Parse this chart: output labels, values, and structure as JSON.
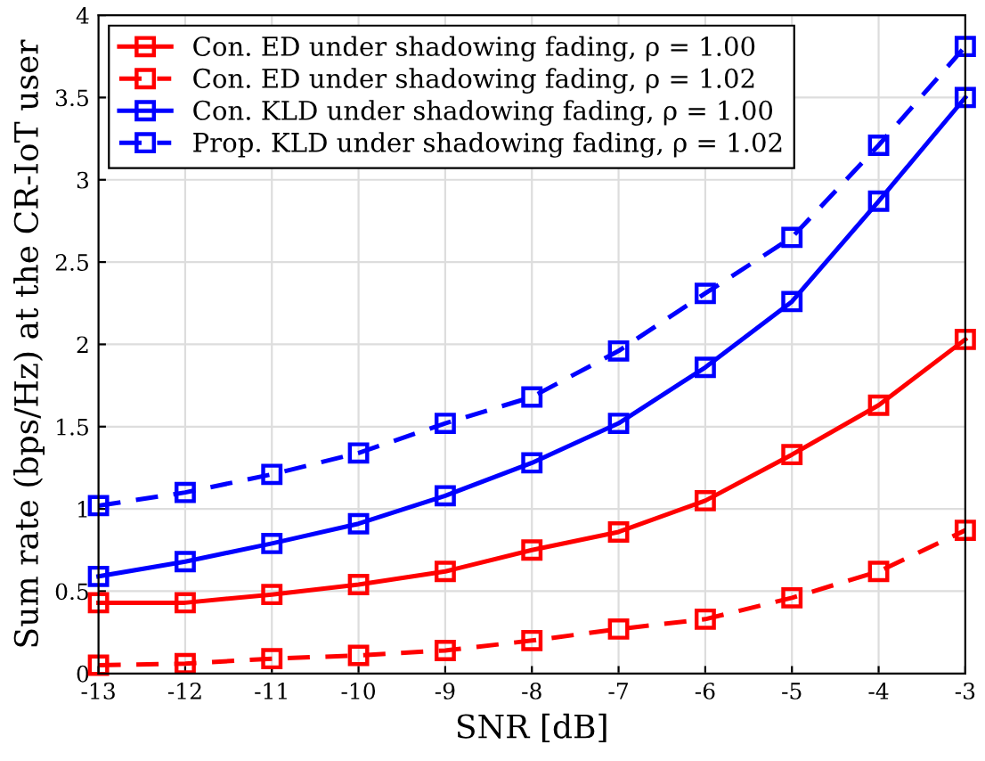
{
  "chart_data": {
    "type": "line",
    "xlabel": "SNR [dB]",
    "ylabel": "Sum rate (bps/Hz) at the CR-IoT user",
    "x": [
      -13,
      -12,
      -11,
      -10,
      -9,
      -8,
      -7,
      -6,
      -5,
      -4,
      -3
    ],
    "series": [
      {
        "name": "Con. ED under shadowing fading, ρ = 1.00",
        "color": "#ff0000",
        "line_style": "solid",
        "values": [
          0.43,
          0.43,
          0.48,
          0.54,
          0.62,
          0.75,
          0.86,
          1.05,
          1.33,
          1.63,
          2.03
        ]
      },
      {
        "name": "Con. ED under shadowing fading, ρ = 1.02",
        "color": "#ff0000",
        "line_style": "dashed",
        "values": [
          0.05,
          0.06,
          0.09,
          0.11,
          0.14,
          0.2,
          0.27,
          0.33,
          0.46,
          0.62,
          0.87
        ]
      },
      {
        "name": "Con. KLD under shadowing fading, ρ = 1.00",
        "color": "#0000ff",
        "line_style": "solid",
        "values": [
          0.59,
          0.68,
          0.79,
          0.91,
          1.08,
          1.28,
          1.52,
          1.86,
          2.26,
          2.87,
          3.5
        ]
      },
      {
        "name": "Prop. KLD under shadowing fading, ρ = 1.02",
        "color": "#0000ff",
        "line_style": "dashed",
        "values": [
          1.02,
          1.1,
          1.21,
          1.34,
          1.52,
          1.68,
          1.96,
          2.31,
          2.65,
          3.21,
          3.81
        ]
      }
    ],
    "xlim": [
      -13,
      -3
    ],
    "ylim": [
      0,
      4
    ],
    "xticks": [
      -13,
      -12,
      -11,
      -10,
      -9,
      -8,
      -7,
      -6,
      -5,
      -4,
      -3
    ],
    "yticks": [
      0,
      0.5,
      1,
      1.5,
      2,
      2.5,
      3,
      3.5,
      4
    ],
    "grid": true,
    "legend": "top left",
    "marker": "square"
  }
}
